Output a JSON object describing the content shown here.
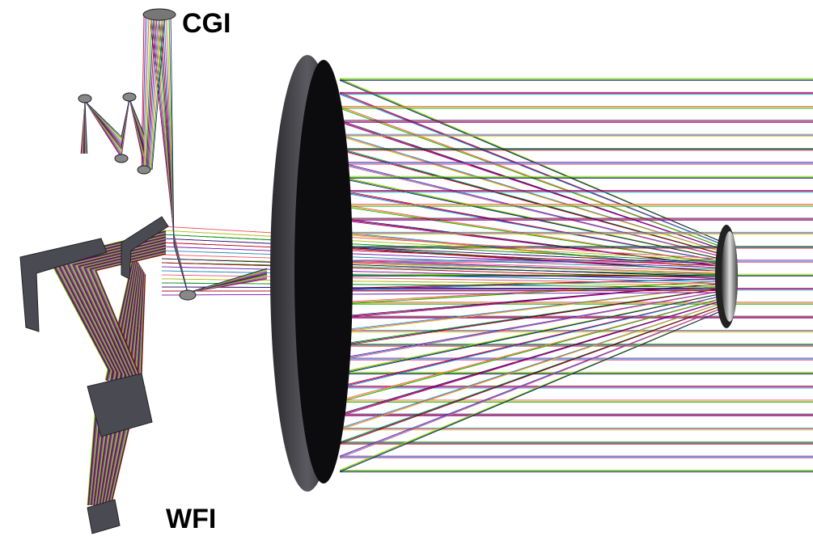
{
  "labels": {
    "top": "CGI",
    "bottom": "WFI"
  }
}
